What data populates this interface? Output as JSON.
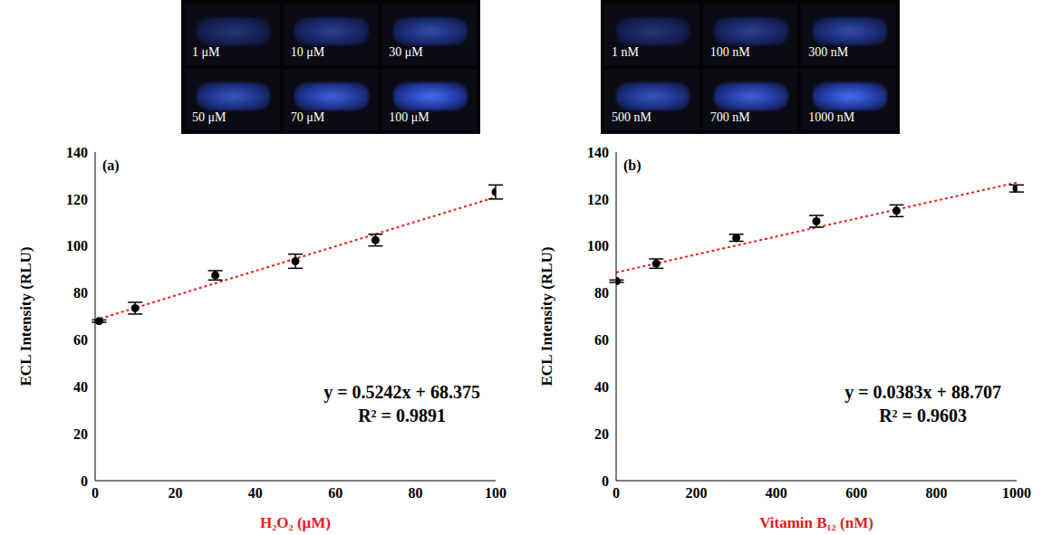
{
  "chart_data": [
    {
      "type": "scatter",
      "panel_label": "(a)",
      "photo_labels": [
        "1 μM",
        "10 μM",
        "30 μM",
        "50 μM",
        "70 μM",
        "100 μM"
      ],
      "xlabel": "H₂O₂ (μM)",
      "ylabel": "ECL Intensity (RLU)",
      "x": [
        1,
        10,
        30,
        50,
        70,
        100
      ],
      "values": [
        68,
        73.5,
        87.5,
        93.5,
        102.5,
        123
      ],
      "errors": [
        0.5,
        2.5,
        2,
        3,
        2.5,
        3
      ],
      "color": "#000000",
      "marker": "circle",
      "xlim": [
        0,
        100
      ],
      "xticks": [
        0,
        20,
        40,
        60,
        80,
        100
      ],
      "ylim": [
        0,
        140
      ],
      "yticks": [
        0,
        20,
        40,
        60,
        80,
        100,
        120,
        140
      ],
      "grid": false,
      "trendline": {
        "slope": 0.5242,
        "intercept": 68.375,
        "equation": "y = 0.5242x + 68.375",
        "r_squared": "R² = 0.9891",
        "color": "#e0201c",
        "line_style": "dotted"
      }
    },
    {
      "type": "scatter",
      "panel_label": "(b)",
      "photo_labels": [
        "1 nM",
        "100 nM",
        "300 nM",
        "500 nM",
        "700 nM",
        "1000 nM"
      ],
      "xlabel": "Vitamin B₁₂ (nM)",
      "ylabel": "ECL Intensity (RLU)",
      "x": [
        1,
        100,
        300,
        500,
        700,
        1000
      ],
      "values": [
        85,
        92.5,
        103.5,
        110.5,
        115,
        124.5
      ],
      "errors": [
        0.5,
        2,
        1.5,
        2.5,
        2.5,
        1.5
      ],
      "color": "#000000",
      "marker": "circle",
      "xlim": [
        0,
        1000
      ],
      "xticks": [
        0,
        200,
        400,
        600,
        800,
        1000
      ],
      "ylim": [
        0,
        140
      ],
      "yticks": [
        0,
        20,
        40,
        60,
        80,
        100,
        120,
        140
      ],
      "grid": false,
      "trendline": {
        "slope": 0.0383,
        "intercept": 88.707,
        "equation": "y = 0.0383x + 88.707",
        "r_squared": "R² = 0.9603",
        "color": "#e0201c",
        "line_style": "dotted"
      }
    }
  ]
}
